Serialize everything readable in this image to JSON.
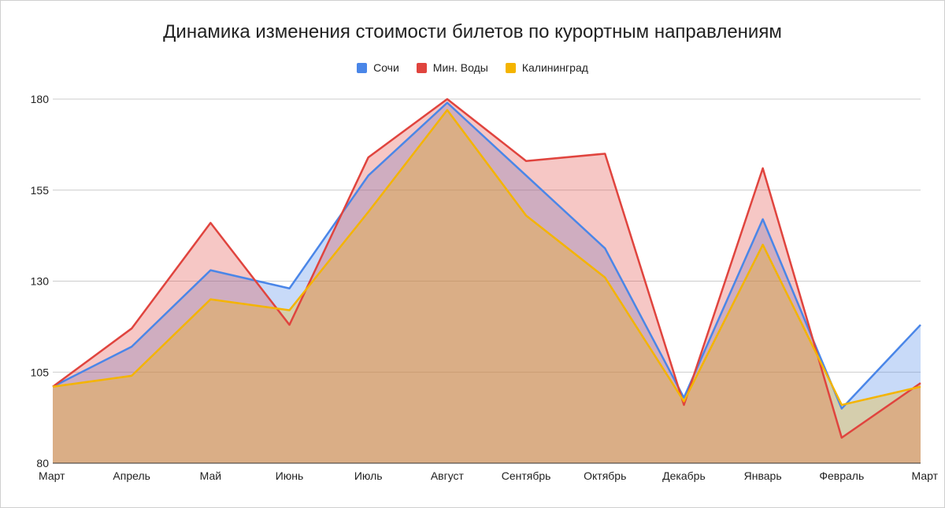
{
  "chart_data": {
    "type": "area",
    "title": "Динамика изменения стоимости билетов по курортным направлениям",
    "xlabel": "",
    "ylabel": "",
    "categories": [
      "Март",
      "Апрель",
      "Май",
      "Июнь",
      "Июль",
      "Август",
      "Сентябрь",
      "Октябрь",
      "Декабрь",
      "Январь",
      "Февраль",
      "Март"
    ],
    "series": [
      {
        "name": "Сочи",
        "color": "#4a86e8",
        "values": [
          101,
          112,
          133,
          128,
          159,
          179,
          159,
          139,
          98,
          147,
          95,
          118
        ]
      },
      {
        "name": "Мин. Воды",
        "color": "#e0443e",
        "values": [
          101,
          117,
          146,
          118,
          164,
          180,
          163,
          165,
          96,
          161,
          87,
          102
        ]
      },
      {
        "name": "Калининград",
        "color": "#f4b400",
        "values": [
          101,
          104,
          125,
          122,
          149,
          177,
          148,
          131,
          97,
          140,
          96,
          101
        ]
      }
    ],
    "ylim": [
      80,
      180
    ],
    "yticks": [
      80,
      105,
      130,
      155,
      180
    ],
    "grid": true,
    "legend": "top"
  }
}
